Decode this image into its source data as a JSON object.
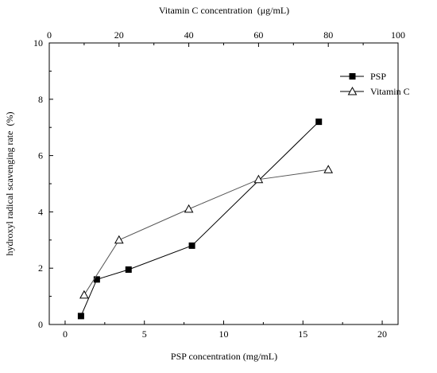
{
  "chart_data": {
    "type": "line",
    "title": "",
    "xlabel": "PSP concentration (mg/mL)",
    "x2label": "Vitamin C concentration  (μg/mL)",
    "ylabel": "hydroxyl radical scavenging rate  (%)",
    "xlim": [
      -1,
      21
    ],
    "x2lim": [
      0,
      100
    ],
    "ylim": [
      0,
      10
    ],
    "xticks": [
      0,
      5,
      10,
      15,
      20
    ],
    "x2ticks": [
      0,
      20,
      40,
      60,
      80,
      100
    ],
    "yticks": [
      0,
      2,
      4,
      6,
      8,
      10
    ],
    "grid": false,
    "legend_position": "top-right",
    "series": [
      {
        "name": "PSP",
        "axis": "bottom",
        "marker": "filled-square",
        "x": [
          1,
          2,
          4,
          8,
          16
        ],
        "values": [
          0.3,
          1.6,
          1.95,
          2.8,
          7.2
        ]
      },
      {
        "name": "Vitamin C",
        "axis": "top",
        "marker": "open-triangle",
        "x": [
          10,
          20,
          40,
          60,
          80
        ],
        "values": [
          1.05,
          3.0,
          4.1,
          5.15,
          5.5
        ]
      }
    ]
  }
}
